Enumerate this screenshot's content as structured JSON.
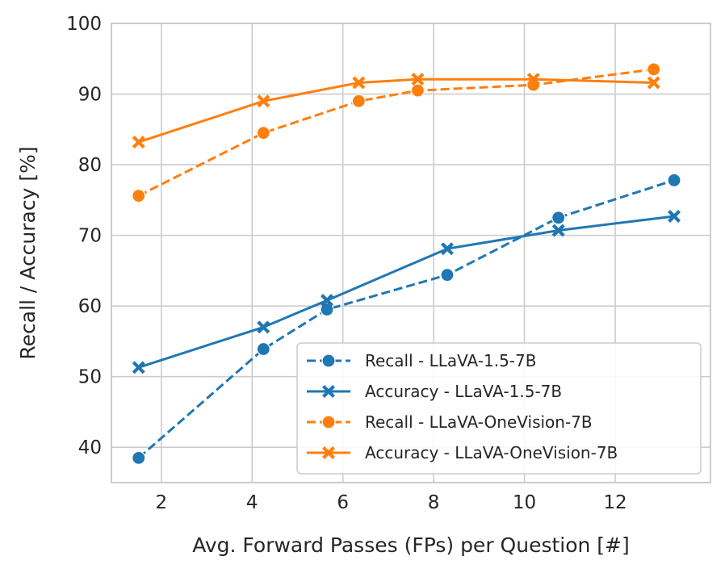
{
  "chart_data": {
    "type": "line",
    "title": "",
    "xlabel": "Avg. Forward Passes (FPs) per Question [#]",
    "ylabel": "Recall / Accuracy [%]",
    "xlim": [
      0.9,
      14.1
    ],
    "ylim": [
      35,
      100
    ],
    "xticks": [
      2,
      4,
      6,
      8,
      10,
      12
    ],
    "yticks": [
      40,
      50,
      60,
      70,
      80,
      90,
      100
    ],
    "grid": true,
    "legend_position": "bottom-right",
    "series": [
      {
        "name": "Recall - LLaVA-1.5-7B",
        "color": "#1f77b4",
        "linestyle": "dashed",
        "marker": "circle",
        "x": [
          1.5,
          4.25,
          5.65,
          8.3,
          10.75,
          13.3
        ],
        "y": [
          38.5,
          53.9,
          59.5,
          64.4,
          72.5,
          77.8
        ]
      },
      {
        "name": "Accuracy - LLaVA-1.5-7B",
        "color": "#1f77b4",
        "linestyle": "solid",
        "marker": "x",
        "x": [
          1.5,
          4.25,
          5.65,
          8.3,
          10.75,
          13.3
        ],
        "y": [
          51.3,
          57.0,
          60.8,
          68.1,
          70.7,
          72.7
        ]
      },
      {
        "name": "Recall - LLaVA-OneVision-7B",
        "color": "#ff7f0e",
        "linestyle": "dashed",
        "marker": "circle",
        "x": [
          1.5,
          4.25,
          6.35,
          7.65,
          10.2,
          12.85
        ],
        "y": [
          75.6,
          84.5,
          89.0,
          90.5,
          91.3,
          93.5
        ]
      },
      {
        "name": "Accuracy - LLaVA-OneVision-7B",
        "color": "#ff7f0e",
        "linestyle": "solid",
        "marker": "x",
        "x": [
          1.5,
          4.25,
          6.35,
          7.65,
          10.2,
          12.85
        ],
        "y": [
          83.2,
          89.0,
          91.6,
          92.1,
          92.1,
          91.6
        ]
      }
    ]
  }
}
